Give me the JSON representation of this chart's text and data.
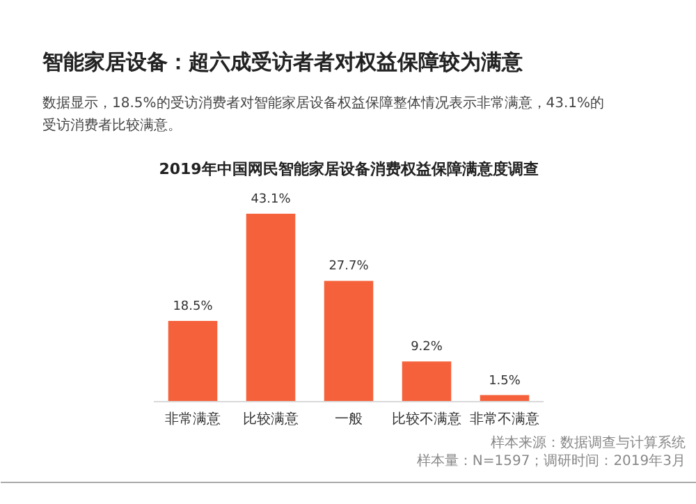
{
  "chart_data": {
    "type": "bar",
    "title": "智能家居设备：超六成受访者者对权益保障较为满意",
    "subtitle": "数据显示，18.5%的受访消费者对智能家居设备权益保障整体情况表示非常满意，43.1%的受访消费者比较满意。",
    "xlabel": "2019年中国网民智能家居设备消费权益保障满意度调查",
    "categories": [
      "非常满意",
      "比较满意",
      "一般",
      "比较不满意",
      "非常不满意"
    ],
    "values": [
      18.5,
      43.1,
      27.7,
      9.2,
      1.5
    ],
    "color": "#f5613a",
    "value_labels": [
      "18.5%",
      "43.1%",
      "27.7%",
      "9.2%",
      "1.5%"
    ],
    "annotations": [
      "样本来源：数据调查与计算系统",
      "样本量：N=1597；调研时间：2019年3月"
    ]
  }
}
